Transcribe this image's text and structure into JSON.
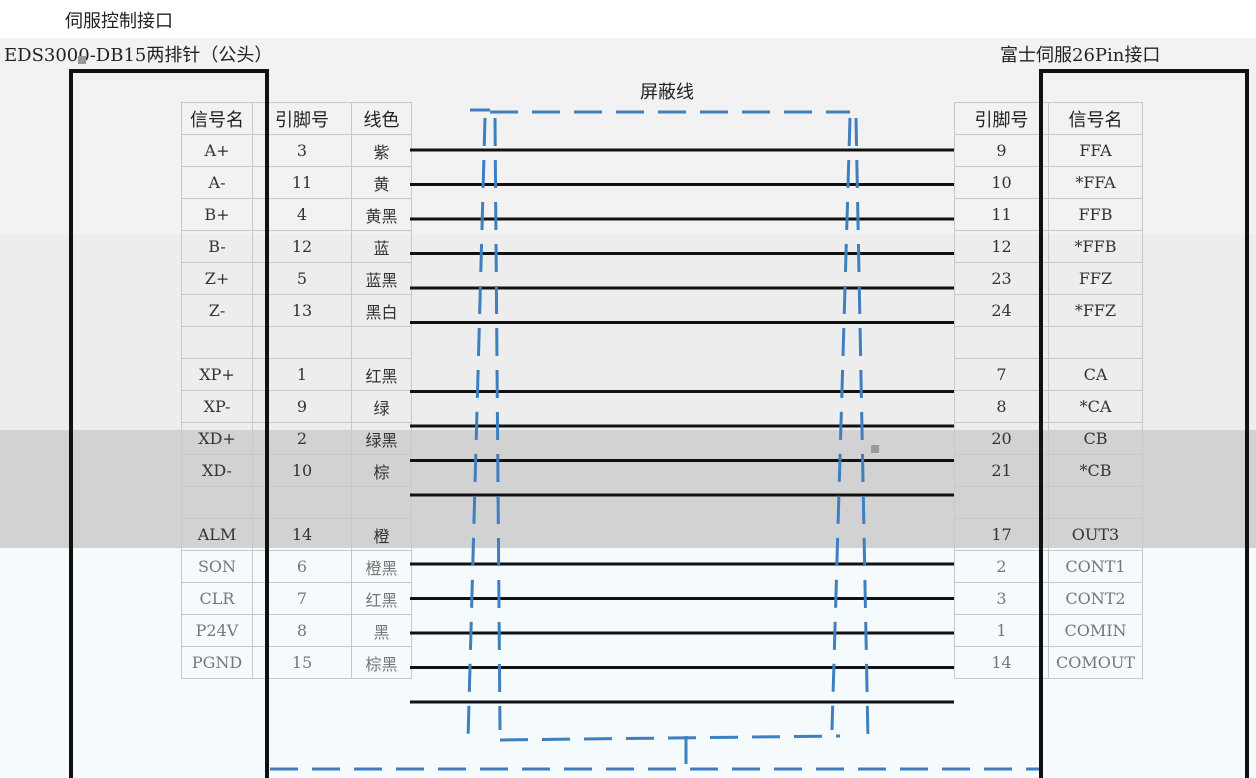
{
  "titles": {
    "top": "伺服控制接口",
    "left_connector": "EDS3000-DB15两排针（公头）",
    "right_connector": "富士伺服26Pin接口",
    "shield": "屏蔽线"
  },
  "left_table": {
    "headers": [
      "信号名",
      "引脚号",
      "线色"
    ],
    "rows": [
      [
        "A+",
        "3",
        "紫"
      ],
      [
        "A-",
        "11",
        "黄"
      ],
      [
        "B+",
        "4",
        "黄黑"
      ],
      [
        "B-",
        "12",
        "蓝"
      ],
      [
        "Z+",
        "5",
        "蓝黑"
      ],
      [
        "Z-",
        "13",
        "黑白"
      ],
      [
        "",
        "",
        ""
      ],
      [
        "XP+",
        "1",
        "红黑"
      ],
      [
        "XP-",
        "9",
        "绿"
      ],
      [
        "XD+",
        "2",
        "绿黑"
      ],
      [
        "XD-",
        "10",
        "棕"
      ],
      [
        "",
        "",
        ""
      ],
      [
        "ALM",
        "14",
        "橙"
      ],
      [
        "SON",
        "6",
        "橙黑"
      ],
      [
        "CLR",
        "7",
        "红黑"
      ],
      [
        "P24V",
        "8",
        "黑"
      ],
      [
        "PGND",
        "15",
        "棕黑"
      ]
    ]
  },
  "right_table": {
    "headers": [
      "引脚号",
      "信号名"
    ],
    "rows": [
      [
        "9",
        "FFA"
      ],
      [
        "10",
        "*FFA"
      ],
      [
        "11",
        "FFB"
      ],
      [
        "12",
        "*FFB"
      ],
      [
        "23",
        "FFZ"
      ],
      [
        "24",
        "*FFZ"
      ],
      [
        "",
        ""
      ],
      [
        "7",
        "CA"
      ],
      [
        "8",
        "*CA"
      ],
      [
        "20",
        "CB"
      ],
      [
        "21",
        "*CB"
      ],
      [
        "",
        ""
      ],
      [
        "17",
        "OUT3"
      ],
      [
        "2",
        "CONT1"
      ],
      [
        "3",
        "CONT2"
      ],
      [
        "1",
        "COMIN"
      ],
      [
        "14",
        "COMOUT"
      ]
    ]
  },
  "colors": {
    "wire": "#111111",
    "shield": "#3d7fc1",
    "connector_frame": "#111111",
    "band_light": "#efefef",
    "band_dark": "#d2d2d2",
    "band_blue": "#f5fbfd"
  }
}
